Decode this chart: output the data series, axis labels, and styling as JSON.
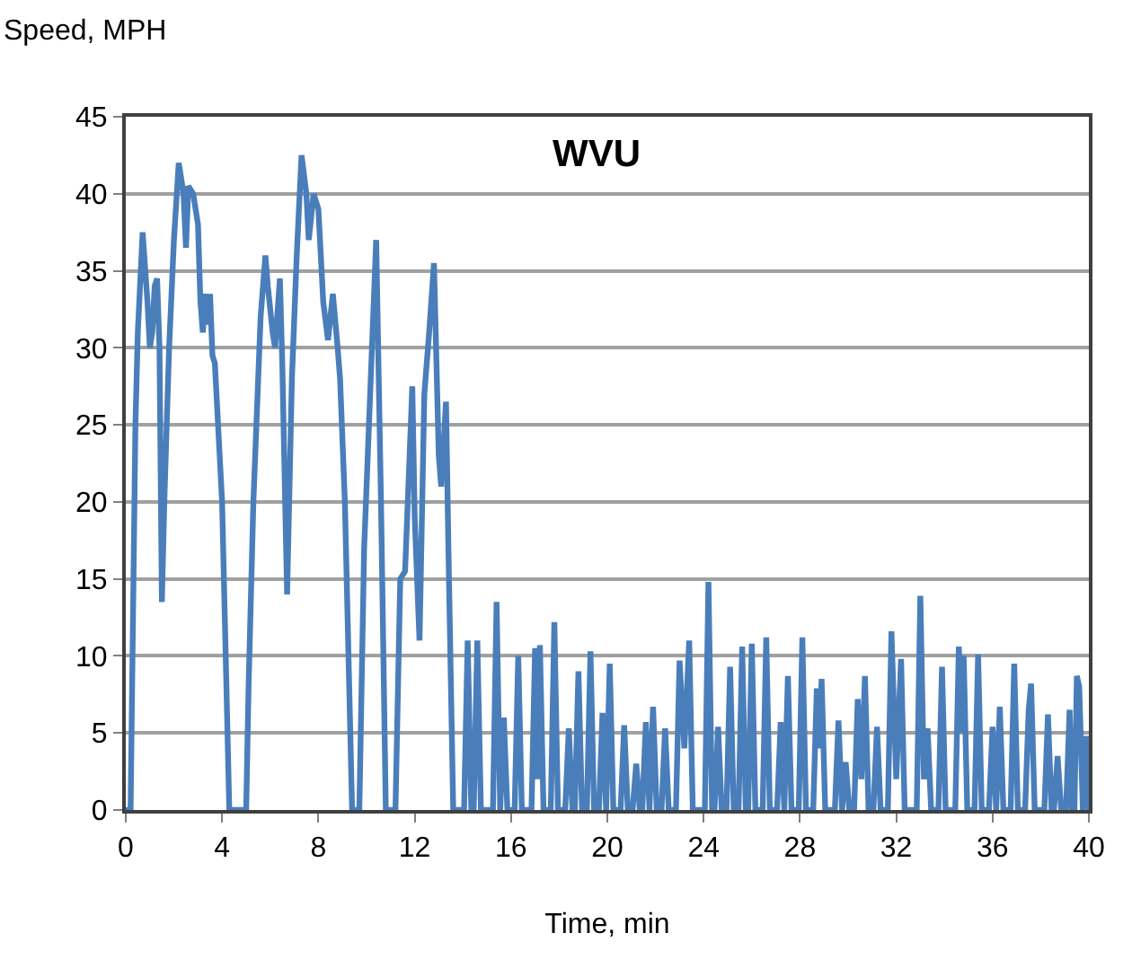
{
  "chart_data": {
    "type": "line",
    "title": "WVU",
    "xlabel": "Time, min",
    "ylabel": "Speed, MPH",
    "xlim": [
      0,
      40
    ],
    "xticks": [
      0,
      4,
      8,
      12,
      16,
      20,
      24,
      28,
      32,
      36,
      40
    ],
    "ylim": [
      0,
      45
    ],
    "yticks": [
      0,
      5,
      10,
      15,
      20,
      25,
      30,
      35,
      40,
      45
    ],
    "grid": "y",
    "marker": "none",
    "line_style": "solid",
    "series": [
      {
        "color": "#4a7ebb",
        "x": [
          0,
          0.2,
          0.4,
          0.5,
          0.7,
          0.9,
          1.0,
          1.1,
          1.2,
          1.3,
          1.4,
          1.5,
          1.6,
          1.8,
          2.0,
          2.2,
          2.4,
          2.5,
          2.6,
          2.8,
          3.0,
          3.1,
          3.2,
          3.3,
          3.4,
          3.5,
          3.6,
          3.7,
          4.0,
          4.3,
          5.0,
          5.1,
          5.3,
          5.6,
          5.8,
          5.9,
          6.1,
          6.2,
          6.4,
          6.5,
          6.7,
          6.9,
          7.1,
          7.3,
          7.5,
          7.6,
          7.8,
          8.0,
          8.2,
          8.4,
          8.6,
          8.8,
          8.9,
          9.1,
          9.4,
          9.7,
          9.9,
          10.1,
          10.4,
          10.6,
          10.8,
          11.2,
          11.4,
          11.6,
          11.9,
          12.0,
          12.2,
          12.4,
          12.6,
          12.8,
          13.0,
          13.1,
          13.3,
          13.4,
          13.6,
          14.05,
          14.2,
          14.35,
          14.45,
          14.6,
          14.75,
          15.25,
          15.4,
          15.55,
          15.7,
          15.85,
          16.15,
          16.3,
          16.45,
          16.85,
          17.0,
          17.1,
          17.2,
          17.35,
          17.65,
          17.8,
          17.95,
          18.25,
          18.4,
          18.55,
          18.65,
          18.8,
          18.95,
          19.15,
          19.3,
          19.45,
          19.65,
          19.8,
          19.95,
          20.1,
          20.25,
          20.55,
          20.7,
          20.85,
          21.05,
          21.2,
          21.35,
          21.45,
          21.6,
          21.75,
          21.9,
          22.05,
          22.25,
          22.4,
          22.55,
          22.85,
          23.0,
          23.2,
          23.4,
          23.55,
          24.05,
          24.2,
          24.35,
          24.45,
          24.6,
          24.75,
          24.95,
          25.1,
          25.25,
          25.45,
          25.6,
          25.75,
          25.85,
          26.0,
          26.15,
          26.45,
          26.6,
          26.75,
          27.05,
          27.2,
          27.35,
          27.5,
          27.65,
          27.95,
          28.1,
          28.25,
          28.55,
          28.7,
          28.8,
          28.9,
          29.05,
          29.45,
          29.6,
          29.75,
          29.9,
          30.05,
          30.25,
          30.4,
          30.55,
          30.7,
          30.85,
          31.05,
          31.2,
          31.35,
          31.65,
          31.8,
          32.0,
          32.2,
          32.35,
          32.85,
          33.0,
          33.15,
          33.3,
          33.45,
          33.75,
          33.9,
          34.05,
          34.45,
          34.6,
          34.7,
          34.8,
          34.95,
          35.25,
          35.4,
          35.55,
          35.85,
          36.0,
          36.15,
          36.3,
          36.45,
          36.75,
          36.9,
          37.05,
          37.35,
          37.5,
          37.6,
          37.75,
          38.15,
          38.3,
          38.45,
          38.55,
          38.7,
          38.85,
          39.05,
          39.2,
          39.3,
          39.4,
          39.5,
          39.6,
          39.75,
          39.9,
          40
        ],
        "values": [
          0,
          0,
          25,
          31,
          37.5,
          33,
          30,
          31,
          34,
          34.5,
          30,
          13.5,
          20,
          30,
          37,
          42,
          40,
          36.5,
          40.5,
          40,
          38,
          33,
          31,
          33.5,
          31.5,
          33.5,
          29.5,
          29,
          20,
          0,
          0,
          8,
          20,
          32,
          36,
          34,
          31,
          30,
          34.5,
          29,
          14,
          28,
          36,
          42.5,
          40,
          37,
          40,
          39,
          33,
          30.5,
          33.5,
          30,
          28,
          20,
          0,
          0,
          17,
          25,
          37,
          20,
          0,
          0,
          15,
          15.5,
          27.5,
          19,
          11,
          27,
          31,
          35.5,
          23,
          21,
          26.5,
          17,
          0,
          0,
          11,
          0,
          0,
          11,
          0,
          0,
          13.5,
          0,
          6,
          0,
          0,
          10,
          0,
          0,
          10.5,
          2,
          10.7,
          0,
          0,
          12.2,
          0,
          0,
          5.3,
          0,
          0,
          9,
          0,
          0,
          10.3,
          0,
          0,
          6.3,
          0,
          9.5,
          0,
          0,
          5.5,
          0,
          0,
          3,
          0,
          0,
          5.7,
          0,
          6.7,
          0,
          0,
          5.3,
          0,
          0,
          9.7,
          4,
          11,
          0,
          0,
          14.8,
          0,
          0,
          5.4,
          0,
          0,
          9.3,
          0,
          0,
          10.6,
          0,
          0,
          10.8,
          0,
          0,
          11.2,
          0,
          0,
          5.7,
          0,
          8.7,
          0,
          0,
          11.2,
          0,
          0,
          7.9,
          4,
          8.5,
          0,
          0,
          5.8,
          0,
          3.1,
          0,
          0,
          7.2,
          2,
          8.7,
          0,
          0,
          5.4,
          0,
          0,
          11.6,
          2,
          9.8,
          0,
          0,
          13.9,
          2,
          5.3,
          0,
          0,
          9.3,
          0,
          0,
          10.6,
          5,
          10,
          0,
          0,
          10.1,
          0,
          0,
          5.4,
          0,
          6.7,
          0,
          0,
          9.5,
          0,
          0,
          6.5,
          8.2,
          0,
          0,
          6.2,
          0,
          0,
          3.5,
          0,
          0,
          6.5,
          0,
          0,
          8.7,
          8,
          0,
          4.8,
          0
        ]
      }
    ]
  }
}
